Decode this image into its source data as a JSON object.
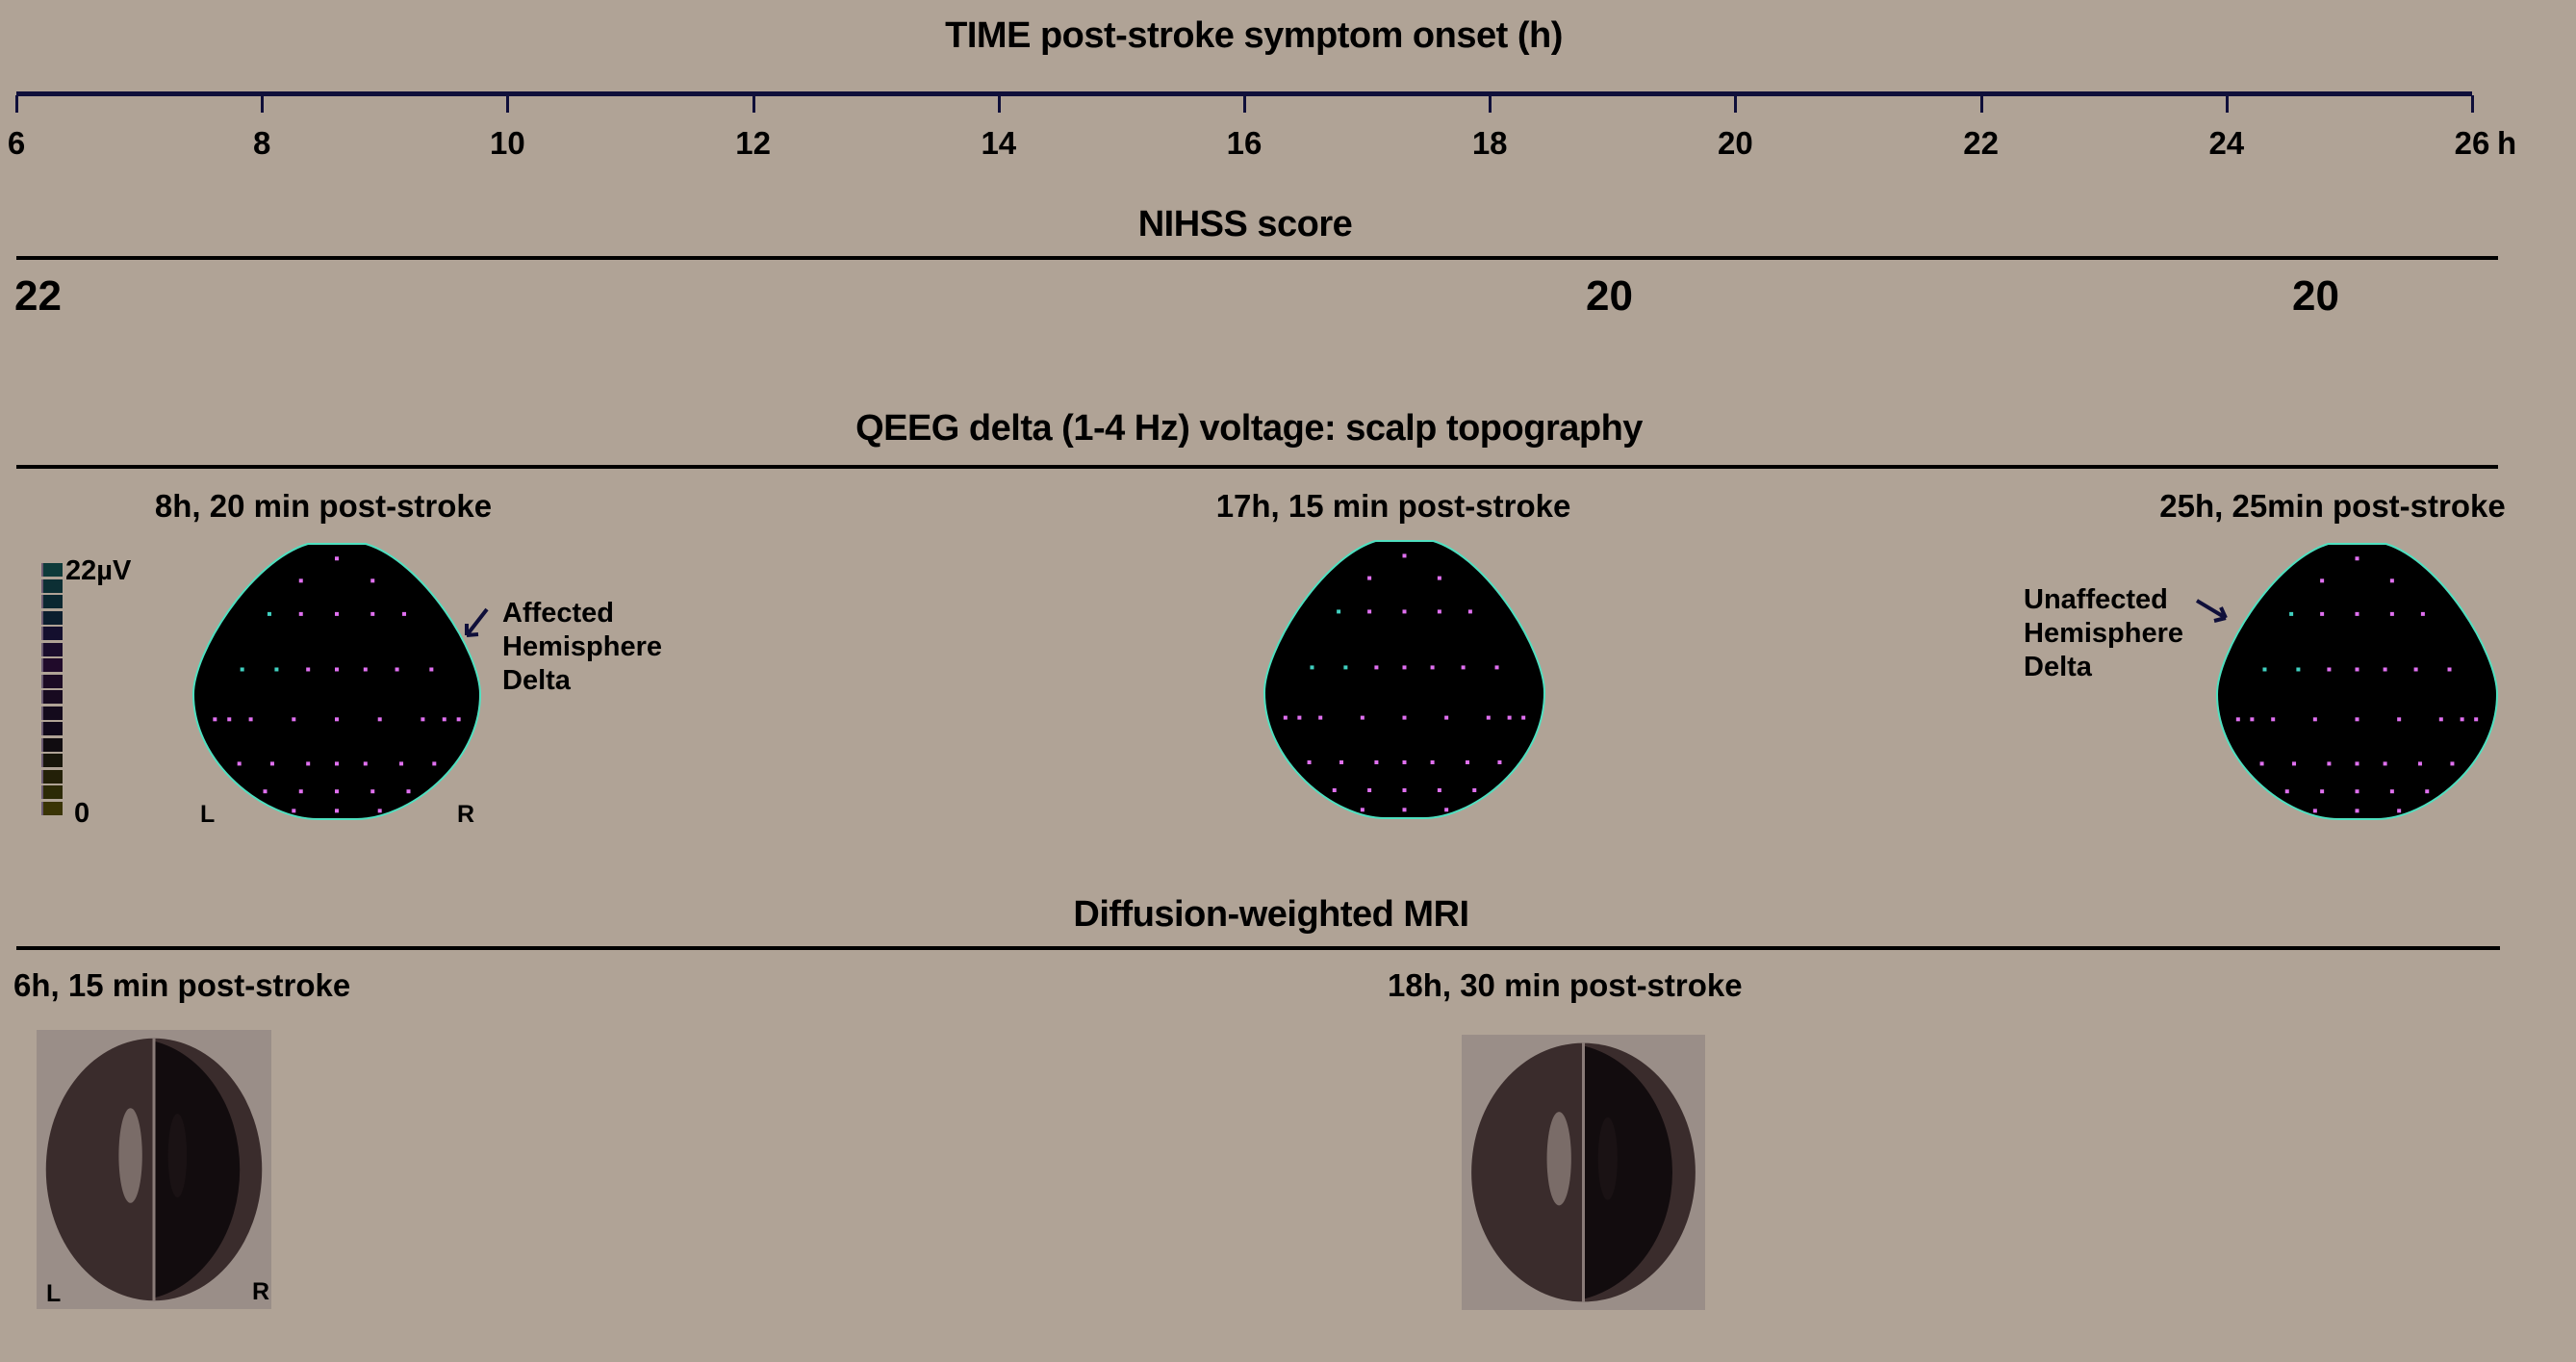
{
  "time_axis": {
    "title": "TIME post-stroke symptom onset (h)",
    "ticks": [
      "6",
      "8",
      "10",
      "12",
      "14",
      "16",
      "18",
      "20",
      "22",
      "24",
      "26"
    ],
    "unit": "h",
    "range": [
      6,
      26
    ]
  },
  "nihss": {
    "title": "NIHSS score",
    "scores": [
      {
        "value": "22",
        "time_h": 6
      },
      {
        "value": "20",
        "time_h": 18
      },
      {
        "value": "20",
        "time_h": 24
      }
    ]
  },
  "qeeg": {
    "title": "QEEG delta (1-4 Hz) voltage: scalp topography",
    "scale": {
      "max_label": "22µV",
      "min_label": "0"
    },
    "maps": [
      {
        "label": "8h, 20 min post-stroke",
        "left": "L",
        "right": "R"
      },
      {
        "label": "17h, 15 min post-stroke"
      },
      {
        "label": "25h, 25min post-stroke"
      }
    ],
    "annotations": {
      "affected": [
        "Affected",
        "Hemisphere",
        "Delta"
      ],
      "unaffected": [
        "Unaffected",
        "Hemisphere",
        "Delta"
      ]
    }
  },
  "mri": {
    "title": "Diffusion-weighted MRI",
    "scans": [
      {
        "label": "6h, 15 min post-stroke",
        "left": "L",
        "right": "R"
      },
      {
        "label": "18h, 30 min post-stroke"
      }
    ]
  },
  "colors": {
    "background": "#b0a396",
    "axis": "#0f0f3a",
    "head": "#000000",
    "electrode": "#e070f0"
  }
}
